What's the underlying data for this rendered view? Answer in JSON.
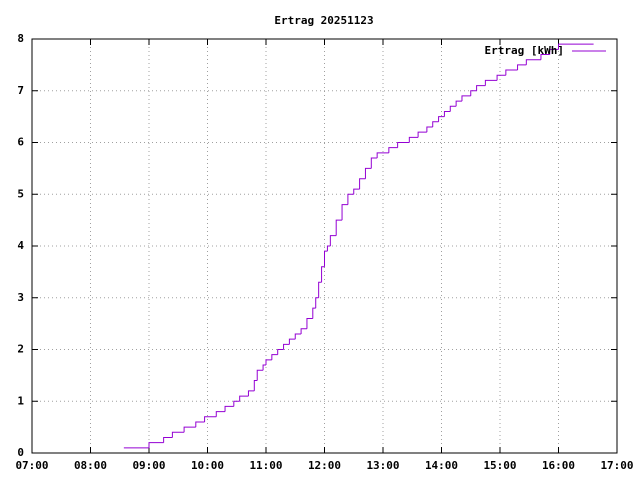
{
  "chart_data": {
    "type": "line",
    "title": "Ertrag 20251123",
    "step": "post",
    "grid": true,
    "legend": "top right",
    "xlim": [
      7,
      17
    ],
    "xticks": [
      {
        "value": 7,
        "label": "07:00"
      },
      {
        "value": 8,
        "label": "08:00"
      },
      {
        "value": 9,
        "label": "09:00"
      },
      {
        "value": 10,
        "label": "10:00"
      },
      {
        "value": 11,
        "label": "11:00"
      },
      {
        "value": 12,
        "label": "12:00"
      },
      {
        "value": 13,
        "label": "13:00"
      },
      {
        "value": 14,
        "label": "14:00"
      },
      {
        "value": 15,
        "label": "15:00"
      },
      {
        "value": 16,
        "label": "16:00"
      },
      {
        "value": 17,
        "label": "17:00"
      }
    ],
    "ylim": [
      0,
      8
    ],
    "yticks": [
      0,
      1,
      2,
      3,
      4,
      5,
      6,
      7,
      8
    ],
    "x": [
      8.57,
      9.0,
      9.25,
      9.4,
      9.6,
      9.8,
      9.95,
      10.15,
      10.3,
      10.45,
      10.55,
      10.7,
      10.8,
      10.85,
      10.95,
      11.0,
      11.1,
      11.2,
      11.3,
      11.4,
      11.5,
      11.6,
      11.7,
      11.8,
      11.85,
      11.9,
      11.95,
      12.0,
      12.05,
      12.1,
      12.2,
      12.3,
      12.4,
      12.5,
      12.6,
      12.7,
      12.8,
      12.9,
      13.1,
      13.25,
      13.45,
      13.6,
      13.75,
      13.85,
      13.95,
      14.05,
      14.15,
      14.25,
      14.35,
      14.5,
      14.6,
      14.75,
      14.95,
      15.1,
      15.3,
      15.45,
      15.7,
      15.85,
      16.0,
      16.6
    ],
    "series": [
      {
        "name": "Ertrag [kWh]",
        "color": "#9400d3",
        "values": [
          0.1,
          0.2,
          0.3,
          0.4,
          0.5,
          0.6,
          0.7,
          0.8,
          0.9,
          1.0,
          1.1,
          1.2,
          1.4,
          1.6,
          1.7,
          1.8,
          1.9,
          2.0,
          2.1,
          2.2,
          2.3,
          2.4,
          2.6,
          2.8,
          3.0,
          3.3,
          3.6,
          3.9,
          4.0,
          4.2,
          4.5,
          4.8,
          5.0,
          5.1,
          5.3,
          5.5,
          5.7,
          5.8,
          5.9,
          6.0,
          6.1,
          6.2,
          6.3,
          6.4,
          6.5,
          6.6,
          6.7,
          6.8,
          6.9,
          7.0,
          7.1,
          7.2,
          7.3,
          7.4,
          7.5,
          7.6,
          7.7,
          7.8,
          7.9,
          7.9
        ]
      }
    ]
  }
}
